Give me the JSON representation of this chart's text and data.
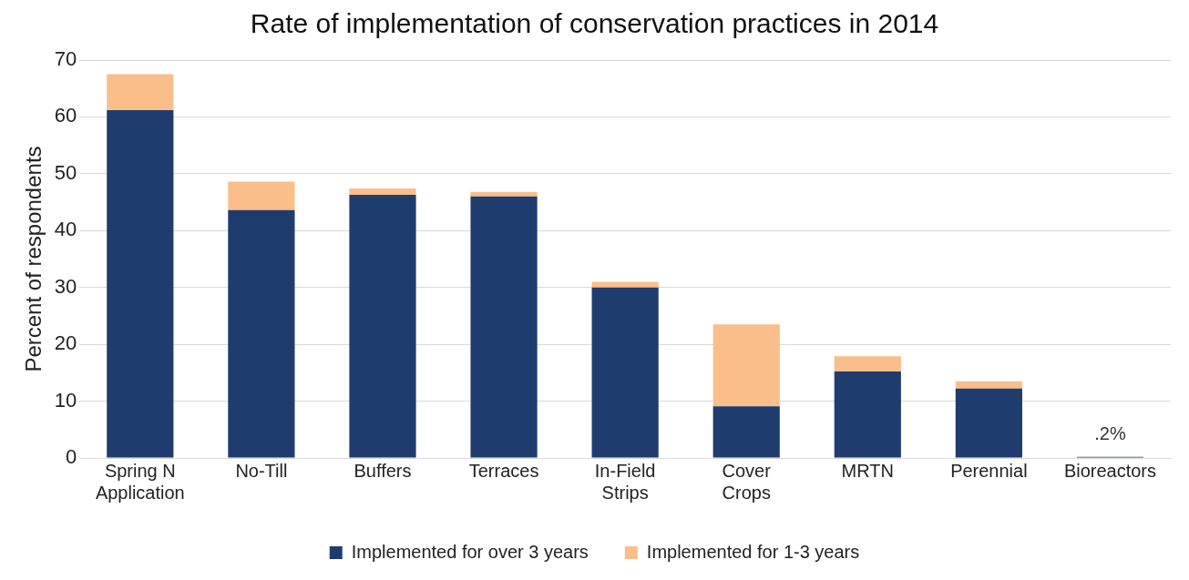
{
  "chart_data": {
    "type": "bar",
    "title": "Rate of implementation of conservation practices in 2014",
    "ylabel": "Percent of respondents",
    "categories": [
      "Spring N Application",
      "No-Till",
      "Buffers",
      "Terraces",
      "In-Field Strips",
      "Cover Crops",
      "MRTN",
      "Perennial",
      "Bioreactors"
    ],
    "stacked": true,
    "series": [
      {
        "name": "Implemented for over 3 years",
        "color": "#1f3c6e",
        "values": [
          61.2,
          43.6,
          46.3,
          46,
          30,
          9.1,
          15.2,
          12.2,
          0.2
        ]
      },
      {
        "name": "Implemented for 1-3 years",
        "color": "#f9be8a",
        "values": [
          6.3,
          5,
          1.1,
          0.8,
          1,
          14.4,
          2.7,
          1.3,
          0
        ]
      }
    ],
    "ylim": [
      0,
      70
    ],
    "yticks": [
      0,
      10,
      20,
      30,
      40,
      50,
      60,
      70
    ],
    "grid": "y",
    "legend": "bottom",
    "annotations": [
      {
        "text": ".2%",
        "x": "Bioreactors",
        "y": 0.2
      }
    ]
  }
}
